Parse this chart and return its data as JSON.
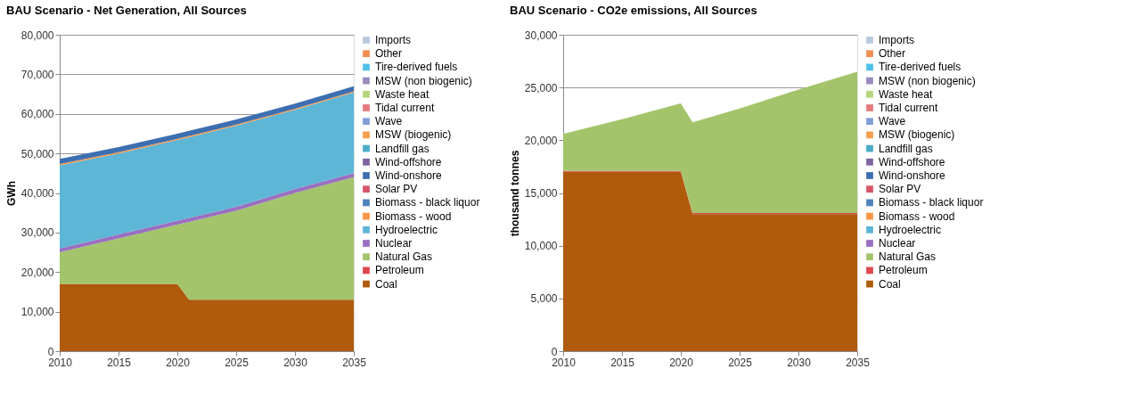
{
  "chart_data": [
    {
      "type": "area",
      "title": "BAU Scenario - Net Generation, All Sources",
      "ylabel": "GWh",
      "stacked": true,
      "grid": "y",
      "legend": "right",
      "x": [
        2010,
        2015,
        2020,
        2021,
        2025,
        2030,
        2035
      ],
      "xlim": [
        2010,
        2035
      ],
      "xticks": [
        2010,
        2015,
        2020,
        2025,
        2030,
        2035
      ],
      "ylim": [
        0,
        80000
      ],
      "yticks": [
        0,
        {
          "value": 10000,
          "label": "10,000"
        },
        {
          "value": 20000,
          "label": "20,000"
        },
        {
          "value": 30000,
          "label": "30,000"
        },
        {
          "value": 40000,
          "label": "40,000"
        },
        {
          "value": 50000,
          "label": "50,000"
        },
        {
          "value": 60000,
          "label": "60,000"
        },
        {
          "value": 70000,
          "label": "70,000"
        },
        {
          "value": 80000,
          "label": "80,000"
        }
      ],
      "series": [
        {
          "name": "Coal",
          "color": "#b05a0c",
          "values": [
            17000,
            17000,
            17000,
            13000,
            13000,
            13000,
            13000
          ]
        },
        {
          "name": "Petroleum",
          "color": "#e0474c",
          "values": [
            null,
            null,
            null,
            null,
            null,
            null,
            null
          ]
        },
        {
          "name": "Natural Gas",
          "color": "#a3c46a",
          "values": [
            8000,
            11500,
            15000,
            19700,
            22500,
            27000,
            31000
          ]
        },
        {
          "name": "Nuclear",
          "color": "#9a6fc0",
          "values": [
            1000,
            1000,
            1000,
            1000,
            1000,
            1000,
            1000
          ]
        },
        {
          "name": "Hydroelectric",
          "color": "#5db6d6",
          "values": [
            21000,
            20500,
            20400,
            20400,
            20500,
            20000,
            20400
          ]
        },
        {
          "name": "Biomass - wood",
          "color": "#f79646",
          "values": [
            300,
            300,
            300,
            300,
            300,
            300,
            300
          ]
        },
        {
          "name": "Biomass - black liquor",
          "color": "#4f81bd",
          "values": [
            null,
            null,
            null,
            null,
            null,
            null,
            null
          ]
        },
        {
          "name": "Solar PV",
          "color": "#d9546a",
          "values": [
            null,
            null,
            null,
            null,
            null,
            null,
            null
          ]
        },
        {
          "name": "Wind-onshore",
          "color": "#3d6fb0",
          "values": [
            1300,
            1300,
            1300,
            1300,
            1300,
            1300,
            1300
          ]
        },
        {
          "name": "Wind-offshore",
          "color": "#8064a2",
          "values": [
            null,
            null,
            null,
            null,
            null,
            null,
            null
          ]
        },
        {
          "name": "Landfill gas",
          "color": "#4bacc6",
          "values": [
            null,
            null,
            null,
            null,
            null,
            null,
            null
          ]
        },
        {
          "name": "MSW (biogenic)",
          "color": "#f5a04c",
          "values": [
            null,
            null,
            null,
            null,
            null,
            null,
            null
          ]
        },
        {
          "name": "Wave",
          "color": "#7f9fd6",
          "values": [
            null,
            null,
            null,
            null,
            null,
            null,
            null
          ]
        },
        {
          "name": "Tidal current",
          "color": "#e6787c",
          "values": [
            null,
            null,
            null,
            null,
            null,
            null,
            null
          ]
        },
        {
          "name": "Waste heat",
          "color": "#b3d67a",
          "values": [
            null,
            null,
            null,
            null,
            null,
            null,
            null
          ]
        },
        {
          "name": "MSW (non biogenic)",
          "color": "#9a8ac0",
          "values": [
            null,
            null,
            null,
            null,
            null,
            null,
            null
          ]
        },
        {
          "name": "Tire-derived fuels",
          "color": "#4fc1e9",
          "values": [
            null,
            null,
            null,
            null,
            null,
            null,
            null
          ]
        },
        {
          "name": "Other",
          "color": "#f28e50",
          "values": [
            null,
            null,
            null,
            null,
            null,
            null,
            null
          ]
        },
        {
          "name": "Imports",
          "color": "#b8c8e0",
          "values": [
            null,
            null,
            null,
            null,
            null,
            null,
            null
          ]
        }
      ]
    },
    {
      "type": "area",
      "title": "BAU Scenario - CO2e emissions, All Sources",
      "ylabel": "thousand tonnes",
      "stacked": true,
      "grid": "y",
      "legend": "right",
      "x": [
        2010,
        2015,
        2020,
        2021,
        2025,
        2030,
        2035
      ],
      "xlim": [
        2010,
        2035
      ],
      "xticks": [
        2010,
        2015,
        2020,
        2025,
        2030,
        2035
      ],
      "ylim": [
        0,
        30000
      ],
      "yticks": [
        0,
        {
          "value": 5000,
          "label": "5,000"
        },
        {
          "value": 10000,
          "label": "10,000"
        },
        {
          "value": 15000,
          "label": "15,000"
        },
        {
          "value": 20000,
          "label": "20,000"
        },
        {
          "value": 25000,
          "label": "25,000"
        },
        {
          "value": 30000,
          "label": "30,000"
        }
      ],
      "series": [
        {
          "name": "Coal",
          "color": "#b05a0c",
          "values": [
            17000,
            17000,
            17000,
            13000,
            13000,
            13000,
            13000
          ]
        },
        {
          "name": "Petroleum",
          "color": "#e0474c",
          "values": [
            100,
            100,
            100,
            100,
            100,
            100,
            100
          ]
        },
        {
          "name": "Natural Gas",
          "color": "#a3c46a",
          "values": [
            3500,
            4900,
            6400,
            8600,
            9900,
            11700,
            13400
          ]
        },
        {
          "name": "Nuclear",
          "color": "#9a6fc0",
          "values": [
            null,
            null,
            null,
            null,
            null,
            null,
            null
          ]
        },
        {
          "name": "Hydroelectric",
          "color": "#5db6d6",
          "values": [
            null,
            null,
            null,
            null,
            null,
            null,
            null
          ]
        },
        {
          "name": "Biomass - wood",
          "color": "#f79646",
          "values": [
            null,
            null,
            null,
            null,
            null,
            null,
            null
          ]
        },
        {
          "name": "Biomass - black liquor",
          "color": "#4f81bd",
          "values": [
            null,
            null,
            null,
            null,
            null,
            null,
            null
          ]
        },
        {
          "name": "Solar PV",
          "color": "#d9546a",
          "values": [
            null,
            null,
            null,
            null,
            null,
            null,
            null
          ]
        },
        {
          "name": "Wind-onshore",
          "color": "#3d6fb0",
          "values": [
            null,
            null,
            null,
            null,
            null,
            null,
            null
          ]
        },
        {
          "name": "Wind-offshore",
          "color": "#8064a2",
          "values": [
            null,
            null,
            null,
            null,
            null,
            null,
            null
          ]
        },
        {
          "name": "Landfill gas",
          "color": "#4bacc6",
          "values": [
            null,
            null,
            null,
            null,
            null,
            null,
            null
          ]
        },
        {
          "name": "MSW (biogenic)",
          "color": "#f5a04c",
          "values": [
            null,
            null,
            null,
            null,
            null,
            null,
            null
          ]
        },
        {
          "name": "Wave",
          "color": "#7f9fd6",
          "values": [
            null,
            null,
            null,
            null,
            null,
            null,
            null
          ]
        },
        {
          "name": "Tidal current",
          "color": "#e6787c",
          "values": [
            null,
            null,
            null,
            null,
            null,
            null,
            null
          ]
        },
        {
          "name": "Waste heat",
          "color": "#b3d67a",
          "values": [
            null,
            null,
            null,
            null,
            null,
            null,
            null
          ]
        },
        {
          "name": "MSW (non biogenic)",
          "color": "#9a8ac0",
          "values": [
            null,
            null,
            null,
            null,
            null,
            null,
            null
          ]
        },
        {
          "name": "Tire-derived fuels",
          "color": "#4fc1e9",
          "values": [
            null,
            null,
            null,
            null,
            null,
            null,
            null
          ]
        },
        {
          "name": "Other",
          "color": "#f28e50",
          "values": [
            null,
            null,
            null,
            null,
            null,
            null,
            null
          ]
        },
        {
          "name": "Imports",
          "color": "#b8c8e0",
          "values": [
            null,
            null,
            null,
            null,
            null,
            null,
            null
          ]
        }
      ]
    }
  ]
}
